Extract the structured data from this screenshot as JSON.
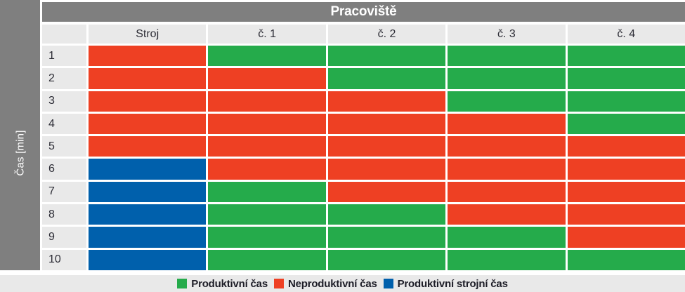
{
  "chart_data": {
    "type": "heatmap",
    "title": "Pracoviště",
    "ylabel": "Čas [min]",
    "xlabel": "",
    "columns": [
      "Stroj",
      "č. 1",
      "č. 2",
      "č. 3",
      "č. 4"
    ],
    "rows": [
      "1",
      "2",
      "3",
      "4",
      "5",
      "6",
      "7",
      "8",
      "9",
      "10"
    ],
    "cell_states": [
      [
        "N",
        "P",
        "P",
        "P",
        "P"
      ],
      [
        "N",
        "N",
        "P",
        "P",
        "P"
      ],
      [
        "N",
        "N",
        "N",
        "P",
        "P"
      ],
      [
        "N",
        "N",
        "N",
        "N",
        "P"
      ],
      [
        "N",
        "N",
        "N",
        "N",
        "N"
      ],
      [
        "S",
        "N",
        "N",
        "N",
        "N"
      ],
      [
        "S",
        "P",
        "N",
        "N",
        "N"
      ],
      [
        "S",
        "P",
        "P",
        "N",
        "N"
      ],
      [
        "S",
        "P",
        "P",
        "P",
        "N"
      ],
      [
        "S",
        "P",
        "P",
        "P",
        "P"
      ]
    ],
    "states": {
      "P": {
        "key": "productive",
        "label": "Produktivní čas",
        "color": "#25ab4b"
      },
      "N": {
        "key": "nonproductive",
        "label": "Neproduktivní čas",
        "color": "#ee4023"
      },
      "S": {
        "key": "machine-productive",
        "label": "Produktivní strojní čas",
        "color": "#0060ac"
      }
    },
    "legend_order": [
      "P",
      "N",
      "S"
    ],
    "legend_position": "bottom",
    "colors": {
      "band_gray": "#7f7f7f",
      "header_cell_gray": "#e9e9e9",
      "legend_bg": "#e9e9e9",
      "title_text": "#ffffff",
      "header_text": "#2d2d36"
    }
  }
}
